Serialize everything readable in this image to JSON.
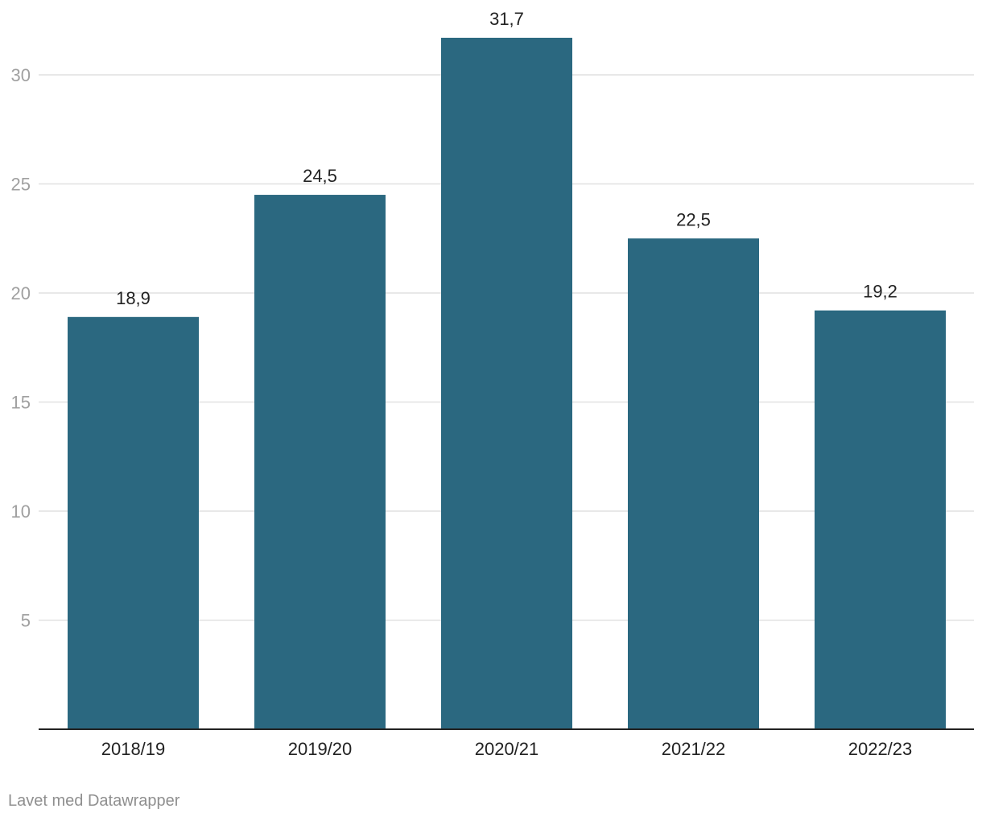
{
  "chart_data": {
    "type": "bar",
    "categories": [
      "2018/19",
      "2019/20",
      "2020/21",
      "2021/22",
      "2022/23"
    ],
    "values": [
      18.9,
      24.5,
      31.7,
      22.5,
      19.2
    ],
    "value_labels": [
      "18,9",
      "24,5",
      "31,7",
      "22,5",
      "19,2"
    ],
    "yticks": [
      5,
      10,
      15,
      20,
      25,
      30
    ],
    "ylim": [
      0,
      30
    ],
    "grid": true,
    "title": "",
    "xlabel": "",
    "ylabel": ""
  },
  "colors": {
    "bar": "#2b6880",
    "grid": "#e1e1e1",
    "axis": "#222222",
    "tick_text": "#a0a0a0",
    "label_text": "#222222"
  },
  "footer": {
    "credit": "Lavet med Datawrapper"
  }
}
